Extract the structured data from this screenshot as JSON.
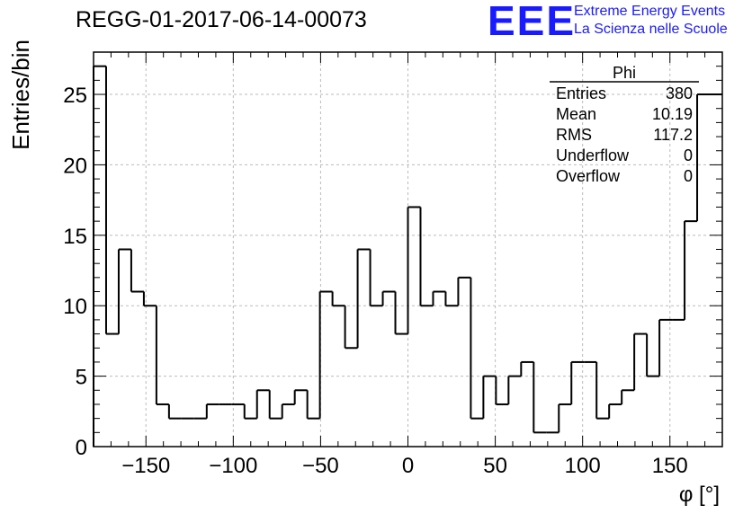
{
  "header": {
    "title": "REGG-01-2017-06-14-00073",
    "logo_mark": "EEE",
    "logo_line1": "Extreme Energy Events",
    "logo_line2": "La Scienza nelle Scuole"
  },
  "colors": {
    "logo": "#1a1aff",
    "line": "#000000",
    "grid": "#bbbbbb"
  },
  "stats": {
    "name": "Phi",
    "rows": [
      {
        "label": "Entries",
        "value": "380"
      },
      {
        "label": "Mean",
        "value": "10.19"
      },
      {
        "label": "RMS",
        "value": "117.2"
      },
      {
        "label": "Underflow",
        "value": "0"
      },
      {
        "label": "Overflow",
        "value": "0"
      }
    ]
  },
  "chart_data": {
    "type": "histogram",
    "xlabel": "φ [°]",
    "ylabel": "Entries/bin",
    "xlim": [
      -180,
      180
    ],
    "ylim": [
      0,
      28
    ],
    "bin_width": 7.2,
    "bin_edges_start": -180,
    "values": [
      27,
      8,
      14,
      11,
      10,
      3,
      2,
      2,
      2,
      3,
      3,
      3,
      2,
      4,
      2,
      3,
      4,
      2,
      11,
      10,
      7,
      14,
      10,
      11,
      8,
      17,
      10,
      11,
      10,
      12,
      2,
      5,
      3,
      5,
      6,
      1,
      1,
      3,
      6,
      6,
      2,
      3,
      4,
      8,
      5,
      9,
      9,
      16,
      25,
      25
    ],
    "xticks": [
      -150,
      -100,
      -50,
      0,
      50,
      100,
      150
    ],
    "xtick_labels": [
      "−150",
      "−100",
      "−50",
      "0",
      "50",
      "100",
      "150"
    ],
    "yticks": [
      0,
      5,
      10,
      15,
      20,
      25
    ],
    "ytick_labels": [
      "0",
      "5",
      "10",
      "15",
      "20",
      "25"
    ],
    "grid": true,
    "legend": "stats box top-right"
  }
}
